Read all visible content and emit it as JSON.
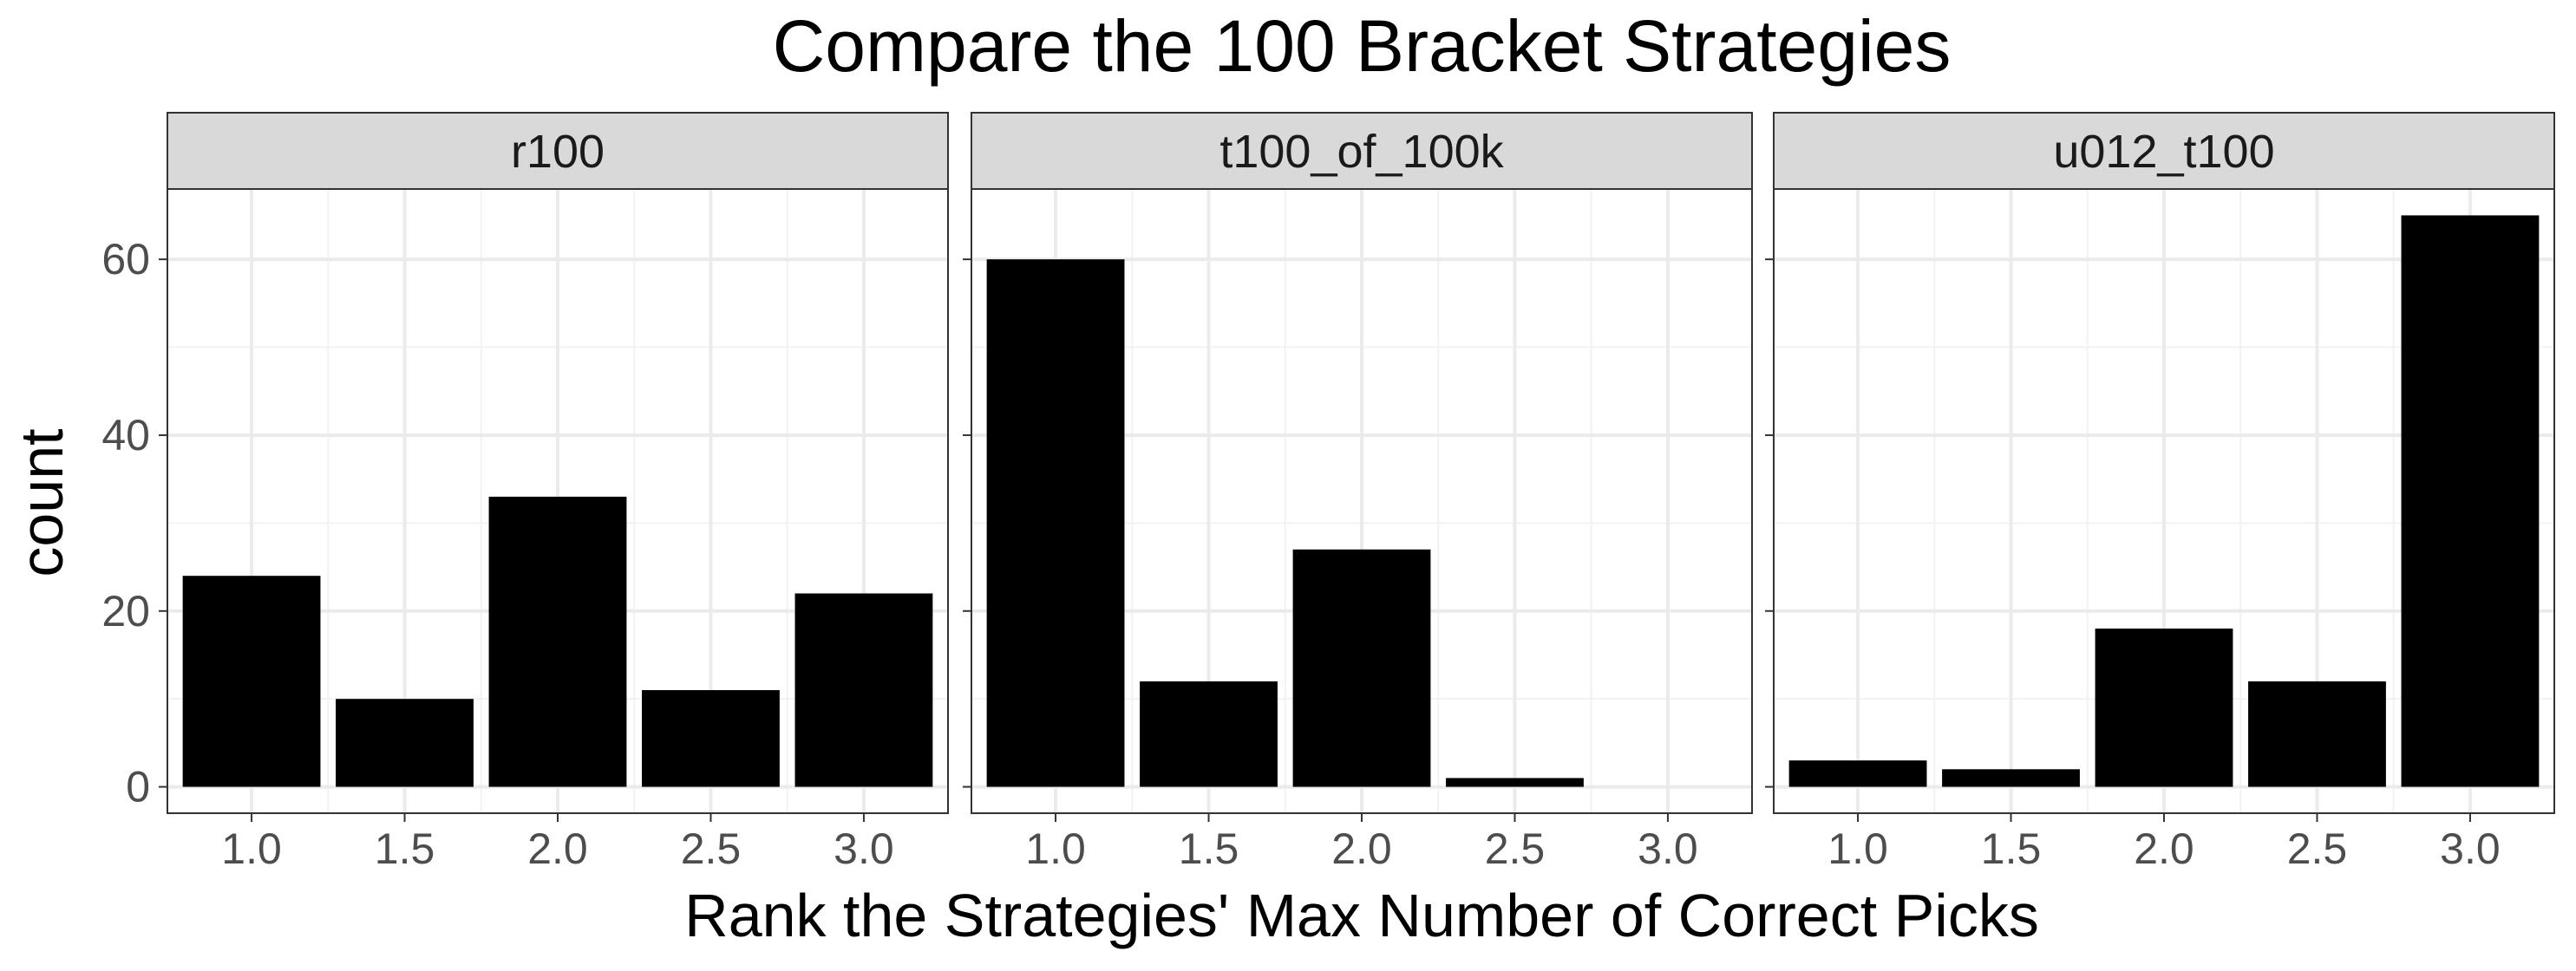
{
  "chart_data": {
    "type": "bar",
    "title": "Compare the 100 Bracket Strategies",
    "xlabel": "Rank the Strategies' Max Number of Correct Picks",
    "ylabel": "count",
    "x_ticks": [
      "1.0",
      "1.5",
      "2.0",
      "2.5",
      "3.0"
    ],
    "y_ticks": [
      "0",
      "20",
      "40",
      "60"
    ],
    "ylim": [
      -3,
      68
    ],
    "xlim": [
      0.725,
      3.275
    ],
    "bar_color": "#000000",
    "grid": true,
    "panels": [
      {
        "name": "r100",
        "x": [
          1.0,
          1.5,
          2.0,
          2.5,
          3.0
        ],
        "values": [
          24,
          10,
          33,
          11,
          22
        ]
      },
      {
        "name": "t100_of_100k",
        "x": [
          1.0,
          1.5,
          2.0,
          2.5,
          3.0
        ],
        "values": [
          60,
          12,
          27,
          1,
          0
        ]
      },
      {
        "name": "u012_t100",
        "x": [
          1.0,
          1.5,
          2.0,
          2.5,
          3.0
        ],
        "values": [
          3,
          2,
          18,
          12,
          65
        ]
      }
    ]
  }
}
